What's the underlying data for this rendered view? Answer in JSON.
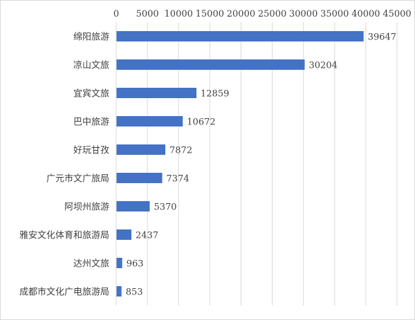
{
  "chart_data": {
    "type": "bar",
    "orientation": "horizontal",
    "categories": [
      "绵阳旅游",
      "凉山文旅",
      "宜宾文旅",
      "巴中旅游",
      "好玩甘孜",
      "广元市文广旅局",
      "阿坝州旅游",
      "雅安文化体育和旅游局",
      "达州文旅",
      "成都市文化广电旅游局"
    ],
    "values": [
      39647,
      30204,
      12859,
      10672,
      7872,
      7374,
      5370,
      2437,
      963,
      853
    ],
    "xlim": [
      0,
      45000
    ],
    "xticks": [
      "0",
      "5000",
      "10000",
      "15000",
      "20000",
      "25000",
      "30000",
      "35000",
      "40000",
      "45000"
    ],
    "x_axis_position": "top",
    "bar_color": "#4472c4",
    "gridlines": "vertical",
    "data_labels": true,
    "legend": "none"
  }
}
